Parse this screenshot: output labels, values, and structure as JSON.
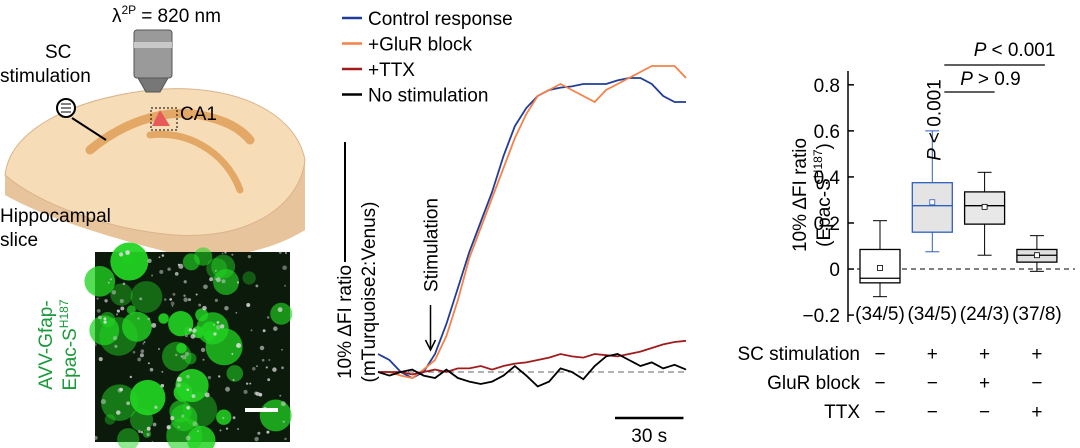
{
  "chart_data": [
    {
      "type": "line",
      "x": [
        0,
        5,
        10,
        15,
        20,
        25,
        30,
        35,
        40,
        45,
        50,
        55,
        60,
        65,
        70,
        75,
        80,
        85,
        90,
        95,
        100,
        105,
        110,
        115,
        120,
        125,
        130,
        135
      ],
      "xlim": [
        0,
        135
      ],
      "ylim": [
        -4,
        27
      ],
      "legend": "upper left",
      "series": [
        {
          "name": "Control response",
          "color": "#1f3d99",
          "values": [
            1.5,
            1,
            0,
            -0.5,
            0,
            1.5,
            4,
            7,
            10,
            12.5,
            15,
            18,
            20.5,
            22,
            23,
            23.5,
            23.7,
            23.8,
            24,
            24,
            24,
            24.3,
            24.5,
            24.5,
            24,
            23,
            22.5,
            22.5
          ]
        },
        {
          "name": "+GluR block",
          "color": "#f5824a",
          "values": [
            0,
            0,
            -0.3,
            -0.5,
            0.2,
            1,
            3,
            6,
            9.5,
            12,
            14.5,
            17,
            19.5,
            21.5,
            23,
            23.5,
            24,
            23.5,
            23,
            22.5,
            23.5,
            24,
            24.5,
            25,
            25.5,
            25.5,
            25.5,
            24.5
          ]
        },
        {
          "name": "+TTX",
          "color": "#a01c1c",
          "values": [
            0,
            0,
            0,
            -0.2,
            0,
            0.2,
            0,
            0.3,
            0.3,
            0.5,
            0.2,
            0.5,
            0.7,
            0.8,
            1.0,
            1.2,
            1.5,
            1.3,
            1.2,
            1.5,
            1.4,
            1.3,
            1.5,
            1.7,
            2.0,
            2.3,
            2.5,
            2.6
          ]
        },
        {
          "name": "No stimulation",
          "color": "#000000",
          "values": [
            0,
            -0.3,
            0,
            0.2,
            -0.3,
            -0.5,
            0.2,
            -0.5,
            -0.8,
            -1.0,
            -0.8,
            -0.3,
            0.5,
            -0.3,
            -1.2,
            -0.8,
            0.3,
            0,
            -0.6,
            0.5,
            1.3,
            1.5,
            1.0,
            0.5,
            0.8,
            0.3,
            0.6,
            0.2
          ]
        }
      ],
      "baseline": {
        "value": 0,
        "style": "dashed"
      },
      "scale_bars": [
        {
          "axis": "y",
          "value": 10,
          "label": [
            "10% ΔFI ratio",
            "(mTurquoise2:Venus)"
          ]
        },
        {
          "axis": "x",
          "value": 30,
          "label": "30 s"
        }
      ],
      "annotations": [
        {
          "text": "Stimulation",
          "x": 16
        }
      ]
    },
    {
      "type": "box",
      "ylabel": {
        "text": "10% ΔFI ratio",
        "sub": "(Epac-S",
        "sup": "H187",
        "end": ")"
      },
      "ylim": [
        -0.23,
        0.86
      ],
      "yticks": [
        {
          "value": -0.2,
          "label": "−0.2"
        },
        0,
        0.2,
        0.4,
        0.6,
        0.8
      ],
      "reference_line": 0,
      "groups": [
        {
          "whisker_low": -0.12,
          "q1": -0.06,
          "median": -0.04,
          "q3": 0.085,
          "whisker_high": 0.21,
          "mean": 0.005,
          "n_label": "(34/5)",
          "edge": "#000000",
          "fill": "#ffffff"
        },
        {
          "whisker_low": 0.075,
          "q1": 0.16,
          "median": 0.275,
          "q3": 0.375,
          "whisker_high": 0.6,
          "mean": 0.29,
          "n_label": "(34/5)",
          "edge": "#2f5fbf",
          "fill": "#e4e4e4"
        },
        {
          "whisker_low": 0.06,
          "q1": 0.195,
          "median": 0.275,
          "q3": 0.335,
          "whisker_high": 0.42,
          "mean": 0.27,
          "n_label": "(24/3)",
          "edge": "#000000",
          "fill": "#e8e8e8"
        },
        {
          "whisker_low": -0.01,
          "q1": 0.03,
          "median": 0.06,
          "q3": 0.085,
          "whisker_high": 0.145,
          "mean": 0.06,
          "n_label": "(37/8)",
          "edge": "#000000",
          "fill": "#e0e0e0"
        }
      ],
      "conditions": [
        {
          "name": "SC stimulation",
          "marks": [
            "−",
            "+",
            "+",
            "+"
          ]
        },
        {
          "name": "GluR block",
          "marks": [
            "−",
            "−",
            "+",
            "−"
          ]
        },
        {
          "name": "TTX",
          "marks": [
            "−",
            "−",
            "−",
            "+"
          ]
        }
      ],
      "significance": [
        {
          "stat": "P",
          "text": "< 0.001"
        },
        {
          "stat": "P",
          "text": "> 0.9"
        },
        {
          "stat": "P",
          "text": "< 0.001"
        }
      ]
    }
  ],
  "schematic": {
    "wavelength": {
      "symbol": "λ",
      "sup": "2P",
      "text": "= 820 nm"
    },
    "stimulation": [
      "SC",
      "stimulation"
    ],
    "region": "CA1",
    "slice": [
      "Hippocampal",
      "slice"
    ]
  },
  "image": {
    "label": [
      "AVV-Gfap-",
      "Epac-S"
    ],
    "sup": "H187"
  }
}
